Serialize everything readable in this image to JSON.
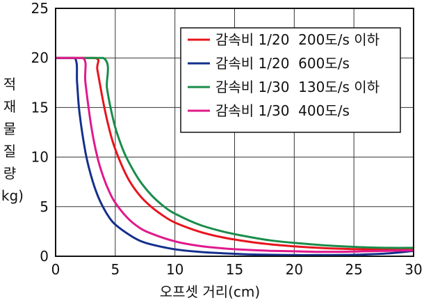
{
  "chart_data": {
    "type": "line",
    "xlabel": "오프셋 거리(cm)",
    "ylabel_chars": [
      "적",
      "재",
      "물",
      "질",
      "량"
    ],
    "ylabel_unit": "(kg)",
    "xlim": [
      0,
      30
    ],
    "ylim": [
      0,
      25
    ],
    "x_ticks": [
      0,
      5,
      10,
      15,
      20,
      25,
      30
    ],
    "y_ticks": [
      0,
      5,
      10,
      15,
      20,
      25
    ],
    "grid": true,
    "legend_position": "top-right",
    "series": [
      {
        "name": "감속비 1/20  200도/s 이하",
        "color": "#e8141c",
        "x": [
          0,
          3.3,
          3.5,
          4,
          4.5,
          5,
          6,
          7,
          8,
          9,
          10,
          12,
          14,
          16,
          18,
          20,
          22,
          24,
          26,
          28,
          30
        ],
        "y": [
          20,
          20,
          18.8,
          15.5,
          12.8,
          10.8,
          8.0,
          6.2,
          5.0,
          4.1,
          3.4,
          2.5,
          1.9,
          1.5,
          1.2,
          1.0,
          0.85,
          0.75,
          0.7,
          0.7,
          0.75
        ]
      },
      {
        "name": "감속비 1/20  600도/s",
        "color": "#142f8c",
        "x": [
          0,
          1.6,
          1.8,
          2,
          2.5,
          3,
          3.5,
          4,
          4.5,
          5,
          6,
          7,
          8,
          10,
          12,
          14,
          16,
          18,
          20,
          22,
          25,
          28,
          30
        ],
        "y": [
          20,
          20,
          17.5,
          14.5,
          10.5,
          8.0,
          6.2,
          4.9,
          3.9,
          3.2,
          2.3,
          1.6,
          1.2,
          0.7,
          0.45,
          0.3,
          0.2,
          0.15,
          0.12,
          0.12,
          0.15,
          0.3,
          0.55
        ]
      },
      {
        "name": "감속비 1/30  130도/s 이하",
        "color": "#1a8c4a",
        "x": [
          0,
          4.0,
          4.3,
          4.6,
          5,
          5.5,
          6,
          7,
          8,
          9,
          10,
          12,
          14,
          16,
          18,
          20,
          22,
          24,
          26,
          28,
          30
        ],
        "y": [
          20,
          20,
          17.0,
          15.0,
          13.0,
          11.2,
          9.8,
          7.7,
          6.2,
          5.1,
          4.3,
          3.2,
          2.5,
          2.0,
          1.6,
          1.35,
          1.15,
          1.0,
          0.9,
          0.85,
          0.85
        ]
      },
      {
        "name": "감속비 1/30  400도/s",
        "color": "#e0198c",
        "x": [
          0,
          2.3,
          2.5,
          3,
          3.5,
          4,
          4.5,
          5,
          6,
          7,
          8,
          10,
          12,
          14,
          16,
          18,
          20,
          22,
          24,
          26,
          28,
          30
        ],
        "y": [
          20,
          20,
          17.5,
          13.0,
          10.0,
          8.0,
          6.5,
          5.4,
          3.9,
          2.9,
          2.3,
          1.5,
          1.05,
          0.8,
          0.65,
          0.55,
          0.5,
          0.45,
          0.45,
          0.5,
          0.55,
          0.6
        ]
      }
    ]
  }
}
